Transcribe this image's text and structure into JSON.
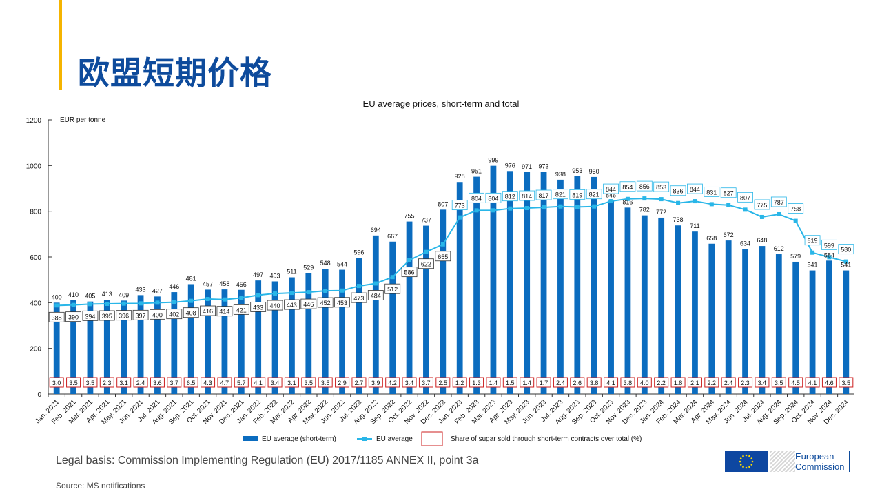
{
  "page": {
    "title": "欧盟短期价格",
    "legal_basis": "Legal basis: Commission Implementing Regulation (EU) 2017/1185 ANNEX II, point 3a",
    "source": "Source: MS notifications",
    "logo_line1": "European",
    "logo_line2": "Commission"
  },
  "colors": {
    "bar": "#0b6cbf",
    "line": "#29b6e8",
    "share_box": "#cc1f1f",
    "title": "#0e4b9c",
    "accent": "#f5b400"
  },
  "chart_data": {
    "type": "bar",
    "title": "EU average prices, short-term and total",
    "ylabel": "EUR per tonne",
    "xlabel": "",
    "ylim": [
      0,
      1200
    ],
    "yticks": [
      0,
      200,
      400,
      600,
      800,
      1000,
      1200
    ],
    "categories": [
      "Jan. 2021",
      "Feb. 2021",
      "Mar. 2021",
      "Apr. 2021",
      "May. 2021",
      "Jun. 2021",
      "Jul. 2021",
      "Aug. 2021",
      "Sep. 2021",
      "Oct. 2021",
      "Nov. 2021",
      "Dec. 2021",
      "Jan. 2022",
      "Feb. 2022",
      "Mar. 2022",
      "Apr. 2022",
      "May. 2022",
      "Jun. 2022",
      "Jul. 2022",
      "Aug. 2022",
      "Sep. 2022",
      "Oct. 2022",
      "Nov. 2022",
      "Dec. 2022",
      "Jan. 2023",
      "Feb. 2023",
      "Mar. 2023",
      "Apr. 2023",
      "May. 2023",
      "Jun. 2023",
      "Jul. 2023",
      "Aug. 2023",
      "Sep. 2023",
      "Oct. 2023",
      "Nov. 2023",
      "Dec. 2023",
      "Jan. 2024",
      "Feb. 2024",
      "Mar. 2024",
      "Apr. 2024",
      "May. 2024",
      "Jun. 2024",
      "Jul. 2024",
      "Aug. 2024",
      "Sep. 2024",
      "Oct. 2024",
      "Nov. 2024",
      "Dec. 2024"
    ],
    "series": [
      {
        "name": "EU average (short-term)",
        "type": "bar",
        "values": [
          400,
          410,
          405,
          413,
          409,
          433,
          427,
          446,
          481,
          457,
          458,
          456,
          497,
          493,
          511,
          529,
          548,
          544,
          596,
          694,
          667,
          755,
          737,
          807,
          928,
          951,
          999,
          976,
          971,
          973,
          938,
          953,
          950,
          846,
          816,
          782,
          772,
          738,
          711,
          658,
          672,
          634,
          648,
          612,
          579,
          541,
          584,
          541
        ]
      },
      {
        "name": "EU average",
        "type": "line",
        "values": [
          388,
          390,
          394,
          395,
          396,
          397,
          400,
          402,
          408,
          416,
          414,
          421,
          433,
          440,
          443,
          446,
          452,
          453,
          473,
          484,
          512,
          586,
          622,
          655,
          773,
          804,
          804,
          812,
          814,
          817,
          821,
          819,
          821,
          844,
          854,
          856,
          853,
          836,
          844,
          831,
          827,
          807,
          775,
          787,
          758,
          619,
          599,
          580
        ]
      },
      {
        "name": "Share of sugar sold through short-term contracts over total (%)",
        "type": "label",
        "values": [
          "3.0",
          "3.5",
          "3.5",
          "2.3",
          "3.1",
          "2.4",
          "3.6",
          "3.7",
          "6.5",
          "4.3",
          "4.7",
          "5.7",
          "4.1",
          "3.4",
          "3.1",
          "3.5",
          "3.5",
          "2.9",
          "2.7",
          "3.9",
          "4.2",
          "3.4",
          "3.7",
          "2.5",
          "1.2",
          "1.3",
          "1.4",
          "1.5",
          "1.4",
          "1.7",
          "2.4",
          "2.6",
          "3.8",
          "4.1",
          "3.8",
          "4.0",
          "2.2",
          "1.8",
          "2.1",
          "2.2",
          "2.4",
          "2.3",
          "3.4",
          "3.5",
          "4.5",
          "4.1",
          "4.6",
          "3.5"
        ]
      }
    ],
    "legend_position": "bottom-center",
    "grid": false
  }
}
